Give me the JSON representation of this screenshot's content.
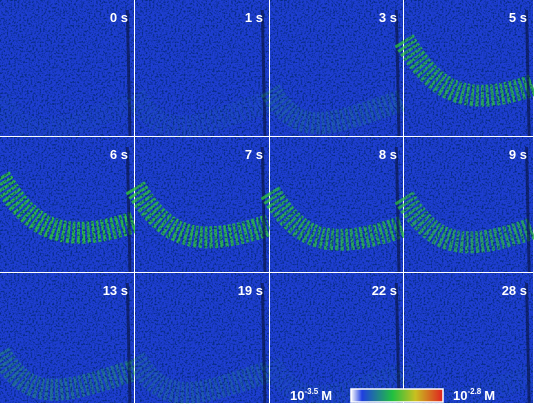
{
  "panels": [
    "0 s",
    "1 s",
    "3 s",
    "5 s",
    "6 s",
    "7 s",
    "8 s",
    "9 s",
    "13 s",
    "19 s",
    "22 s",
    "28 s"
  ],
  "colorbar": {
    "low": {
      "base": "10",
      "exponent": "-3.5",
      "unit": "M"
    },
    "high": {
      "base": "10",
      "exponent": "-2.8",
      "unit": "M"
    }
  }
}
